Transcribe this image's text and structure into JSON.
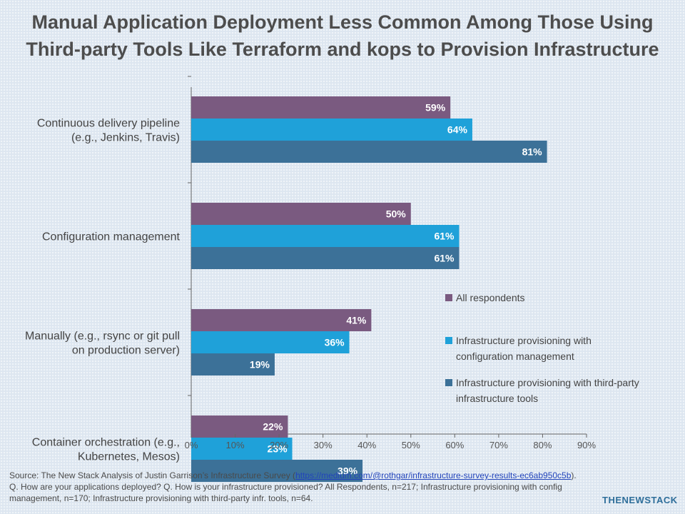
{
  "chart_data": {
    "type": "bar",
    "orientation": "horizontal",
    "title": [
      "Manual Application Deployment Less Common Among Those Using",
      "Third-party Tools Like Terraform and kops to Provision Infrastructure"
    ],
    "categories": [
      [
        "Continuous delivery pipeline",
        "(e.g., Jenkins, Travis)"
      ],
      [
        "Configuration management"
      ],
      [
        "Manually (e.g., rsync or git pull",
        "on production server)"
      ],
      [
        "Container orchestration (e.g.,",
        "Kubernetes, Mesos)"
      ]
    ],
    "series": [
      {
        "name": "All respondents",
        "color": "#7a5a80",
        "values": [
          59,
          50,
          41,
          22
        ]
      },
      {
        "name": "Infrastructure provisioning with configuration management",
        "legend_lines": [
          "Infrastructure provisioning with",
          "configuration management"
        ],
        "color": "#1fa1d9",
        "values": [
          64,
          61,
          36,
          23
        ]
      },
      {
        "name": "Infrastructure provisioning with third-party infrastructure tools",
        "legend_lines": [
          "Infrastructure provisioning with third-party",
          "infrastructure tools"
        ],
        "color": "#3c7198",
        "values": [
          81,
          61,
          19,
          39
        ]
      }
    ],
    "value_suffix": "%",
    "xlim": [
      0,
      90
    ],
    "xticks": [
      "0%",
      "10%",
      "20%",
      "30%",
      "40%",
      "50%",
      "60%",
      "70%",
      "80%",
      "90%"
    ],
    "grid": false,
    "legend_position": "right"
  },
  "source": {
    "prefix": "Source: The New Stack Analysis of Justin Garrison’s Infrastructure Survey (",
    "link_text": "https://medium.com/@rothgar/infrastructure-survey-results-ec6ab950c5b",
    "suffix": "). Q. How are your applications deployed? Q. How is your infrastructure provisioned? All Respondents, n=217; Infrastructure provisioning with config management, n=170; Infrastructure provisioning with third-party infr. tools, n=64."
  },
  "brand": "THENEWSTACK"
}
